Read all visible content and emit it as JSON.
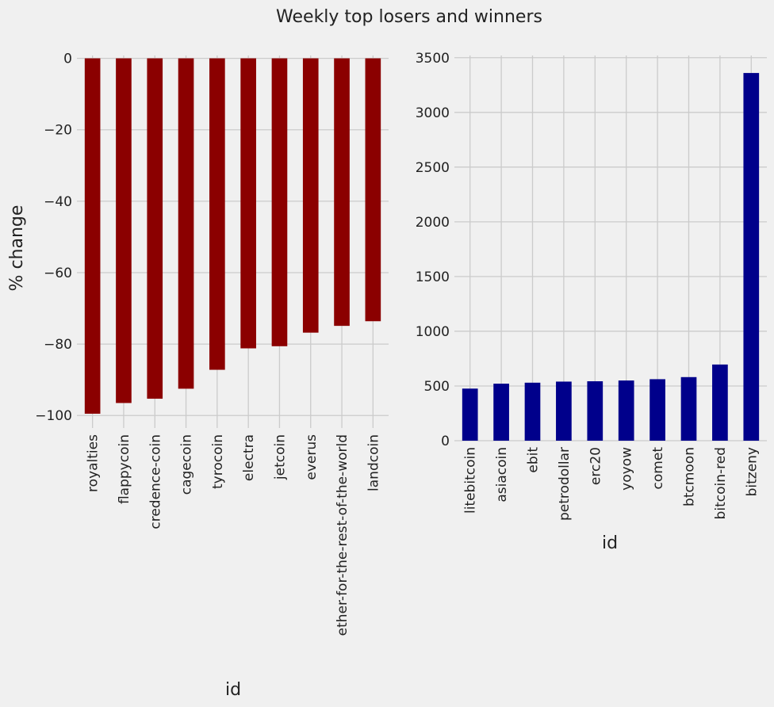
{
  "figure": {
    "title": "Weekly top losers and winners"
  },
  "chart_data": [
    {
      "type": "bar",
      "title": "",
      "xlabel": "id",
      "ylabel": "% change",
      "categories": [
        "royalties",
        "flappycoin",
        "credence-coin",
        "cagecoin",
        "tyrocoin",
        "electra",
        "jetcoin",
        "everus",
        "ether-for-the-rest-of-the-world",
        "landcoin"
      ],
      "values": [
        -99.5,
        -96.5,
        -95.3,
        -92.5,
        -87.2,
        -81.2,
        -80.6,
        -76.8,
        -74.9,
        -73.6
      ],
      "ylim": [
        -103.5,
        0.8
      ],
      "yticks": [
        0,
        -20,
        -40,
        -60,
        -80,
        -100
      ],
      "ytick_labels": [
        "0",
        "−20",
        "−40",
        "−60",
        "−80",
        "−100"
      ],
      "bar_color": "#8b0000",
      "grid": true
    },
    {
      "type": "bar",
      "title": "",
      "xlabel": "id",
      "ylabel": "",
      "categories": [
        "litebitcoin",
        "asiacoin",
        "ebit",
        "petrodollar",
        "erc20",
        "yoyow",
        "comet",
        "btcmoon",
        "bitcoin-red",
        "bitzeny"
      ],
      "values": [
        476,
        521,
        530,
        540,
        543,
        550,
        562,
        581,
        696,
        3360
      ],
      "ylim": [
        0,
        3520
      ],
      "yticks": [
        0,
        500,
        1000,
        1500,
        2000,
        2500,
        3000,
        3500
      ],
      "ytick_labels": [
        "0",
        "500",
        "1000",
        "1500",
        "2000",
        "2500",
        "3000",
        "3500"
      ],
      "bar_color": "#00008b",
      "grid": true
    }
  ]
}
